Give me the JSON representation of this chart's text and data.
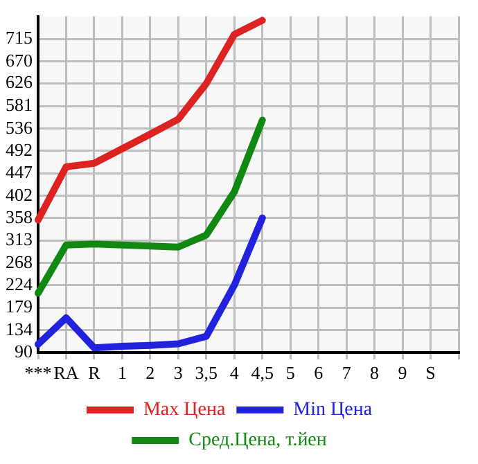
{
  "chart_data": {
    "type": "line",
    "categories": [
      "***",
      "RA",
      "R",
      "1",
      "2",
      "3",
      "3,5",
      "4",
      "4,5",
      "5",
      "6",
      "7",
      "8",
      "9",
      "S",
      null
    ],
    "series": [
      {
        "name": "Max Цена",
        "color": "#dd2222",
        "values": [
          354,
          460,
          467,
          496,
          525,
          555,
          626,
          724,
          752,
          null,
          null,
          null,
          null,
          null,
          null,
          null
        ]
      },
      {
        "name": "Min Цена",
        "color": "#2222dd",
        "values": [
          106,
          159,
          99,
          102,
          104,
          107,
          122,
          224,
          358,
          null,
          null,
          null,
          null,
          null,
          null,
          null
        ]
      },
      {
        "name": "Сред.Цена, т.йен",
        "color": "#118811",
        "values": [
          208,
          304,
          306,
          304,
          302,
          300,
          324,
          410,
          553,
          null,
          null,
          null,
          null,
          null,
          null,
          null
        ]
      }
    ],
    "ylim": [
      90,
      760
    ],
    "yticks": [
      90,
      134,
      179,
      224,
      268,
      313,
      358,
      402,
      447,
      492,
      536,
      581,
      626,
      670,
      715
    ],
    "grid": true,
    "legend": "bottom",
    "marker": "none"
  }
}
